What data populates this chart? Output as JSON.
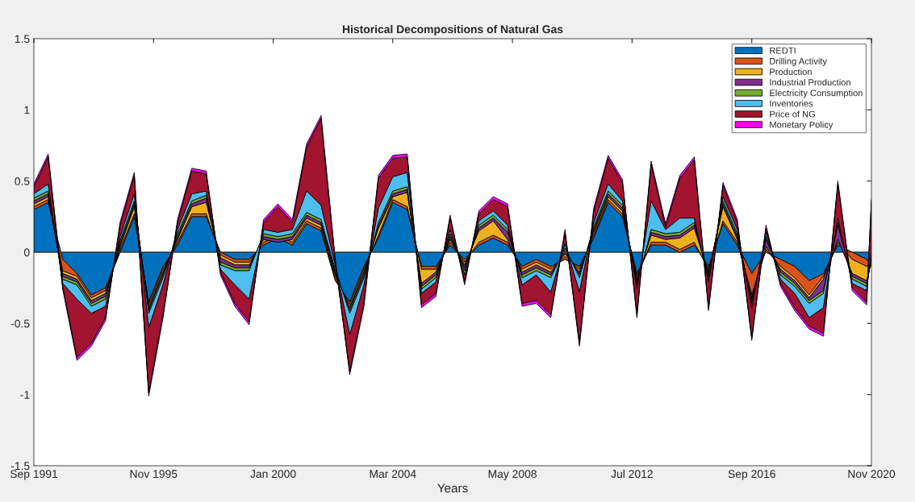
{
  "chart_data": {
    "type": "area",
    "stacked": true,
    "title": "Historical Decompositions of Natural Gas",
    "xlabel": "Years",
    "x": [
      "1991-09",
      "1992-03",
      "1992-09",
      "1993-03",
      "1993-09",
      "1994-03",
      "1994-09",
      "1995-03",
      "1995-09",
      "1996-03",
      "1996-09",
      "1997-03",
      "1997-09",
      "1998-03",
      "1998-09",
      "1999-03",
      "1999-09",
      "2000-03",
      "2000-09",
      "2001-03",
      "2001-09",
      "2002-03",
      "2002-09",
      "2003-03",
      "2003-09",
      "2004-03",
      "2004-09",
      "2005-03",
      "2005-09",
      "2006-03",
      "2006-09",
      "2007-03",
      "2007-09",
      "2008-03",
      "2008-09",
      "2009-03",
      "2009-09",
      "2010-03",
      "2010-09",
      "2011-03",
      "2011-09",
      "2012-03",
      "2012-09",
      "2013-03",
      "2013-09",
      "2014-03",
      "2014-09",
      "2015-03",
      "2015-09",
      "2016-03",
      "2016-09",
      "2017-03",
      "2017-09",
      "2018-03",
      "2018-09",
      "2019-03",
      "2019-09",
      "2020-03",
      "2020-09",
      "2020-11"
    ],
    "series": [
      {
        "name": "REDTI",
        "color": "#0072bd",
        "values": [
          0.3,
          0.35,
          -0.05,
          -0.15,
          -0.3,
          -0.25,
          0,
          0.25,
          -0.35,
          -0.1,
          0.05,
          0.25,
          0.25,
          0,
          -0.05,
          -0.05,
          0.05,
          0.1,
          0.05,
          0.2,
          0.15,
          -0.2,
          -0.35,
          -0.1,
          0.1,
          0.35,
          0.3,
          -0.1,
          -0.1,
          0.05,
          -0.05,
          0.05,
          0.1,
          0.05,
          -0.1,
          -0.05,
          -0.1,
          -0.05,
          -0.1,
          0.1,
          0.35,
          0.25,
          -0.15,
          0.05,
          0.05,
          0,
          0.05,
          -0.1,
          0.2,
          0.05,
          -0.15,
          0,
          -0.05,
          -0.1,
          -0.2,
          -0.15,
          0.05,
          0,
          -0.05,
          -0.1
        ]
      },
      {
        "name": "Drilling Activity",
        "color": "#d95319",
        "values": [
          0.02,
          0.02,
          -0.08,
          -0.02,
          -0.02,
          -0.02,
          0.02,
          0.02,
          -0.02,
          -0.02,
          0.02,
          0.02,
          0.02,
          -0.02,
          -0.02,
          -0.02,
          0.02,
          0.02,
          0.02,
          0.02,
          0.02,
          0.02,
          -0.02,
          -0.02,
          0.02,
          0.02,
          0.02,
          -0.02,
          -0.02,
          0.02,
          -0.02,
          0.02,
          0.02,
          0.02,
          -0.02,
          -0.02,
          -0.02,
          0.02,
          -0.02,
          0.02,
          0.02,
          0.02,
          -0.02,
          0.02,
          0.02,
          0.02,
          0.02,
          -0.02,
          0.02,
          0.02,
          -0.15,
          0.02,
          -0.05,
          -0.08,
          -0.1,
          -0.02,
          0.02,
          -0.05,
          -0.05,
          0.02
        ]
      },
      {
        "name": "Production",
        "color": "#edb120",
        "values": [
          0.02,
          0.02,
          -0.02,
          -0.02,
          -0.02,
          -0.02,
          0.02,
          0.05,
          -0.02,
          -0.02,
          0.02,
          0.05,
          0.08,
          -0.02,
          -0.02,
          -0.02,
          0.02,
          -0.05,
          0.02,
          0.02,
          0.02,
          0.02,
          -0.02,
          -0.02,
          0.05,
          0.02,
          0.1,
          -0.1,
          -0.02,
          0.02,
          -0.02,
          0.08,
          0.1,
          0.02,
          -0.02,
          -0.02,
          -0.02,
          0.02,
          -0.02,
          0.02,
          0.02,
          0.02,
          -0.02,
          0.05,
          0.02,
          0.08,
          0.1,
          -0.02,
          0.1,
          0.02,
          -0.02,
          0.02,
          -0.02,
          -0.02,
          -0.02,
          -0.02,
          0.02,
          -0.1,
          -0.1,
          0.02
        ]
      },
      {
        "name": "Industrial Production",
        "color": "#7e2f8e",
        "values": [
          0.02,
          0.02,
          -0.02,
          -0.02,
          -0.02,
          -0.02,
          0.02,
          0.02,
          -0.02,
          -0.02,
          0.02,
          0.02,
          0.03,
          -0.03,
          -0.02,
          -0.02,
          0.02,
          0.02,
          0.02,
          0.02,
          0.02,
          0.02,
          -0.02,
          -0.02,
          0.02,
          0.02,
          0.02,
          -0.02,
          -0.02,
          0.02,
          -0.02,
          0.02,
          0.02,
          0.05,
          -0.02,
          -0.02,
          -0.02,
          0.02,
          -0.02,
          0.02,
          0.02,
          0.02,
          -0.02,
          0.02,
          0.02,
          0.02,
          0.02,
          -0.02,
          0.02,
          0.02,
          -0.02,
          0.05,
          -0.02,
          -0.02,
          -0.02,
          -0.08,
          0.1,
          -0.02,
          -0.02,
          0.02
        ]
      },
      {
        "name": "Electricity Consumption",
        "color": "#77ac30",
        "values": [
          0.02,
          0.02,
          -0.02,
          -0.02,
          -0.02,
          -0.02,
          0.02,
          0.02,
          -0.02,
          -0.02,
          0.02,
          0.02,
          0.02,
          -0.02,
          -0.02,
          -0.02,
          0.02,
          0.02,
          0.02,
          0.02,
          0.02,
          0.02,
          -0.02,
          -0.02,
          0.02,
          0.02,
          0.02,
          -0.02,
          -0.02,
          0.02,
          -0.02,
          0.02,
          0.02,
          0.02,
          -0.02,
          -0.02,
          -0.02,
          0.02,
          -0.02,
          0.02,
          0.02,
          0.02,
          -0.02,
          0.02,
          0.02,
          0.02,
          0.02,
          -0.02,
          0.02,
          0.02,
          -0.02,
          0.02,
          -0.02,
          -0.02,
          -0.02,
          -0.02,
          0.02,
          -0.02,
          -0.02,
          0.02
        ]
      },
      {
        "name": "Inventories",
        "color": "#4dbeee",
        "values": [
          0.03,
          0.05,
          -0.03,
          -0.1,
          -0.05,
          -0.05,
          0.03,
          0.05,
          -0.1,
          -0.05,
          0.03,
          0.05,
          0.03,
          -0.03,
          -0.1,
          -0.2,
          0.03,
          0.03,
          0.03,
          0.15,
          0.1,
          0.03,
          -0.15,
          -0.05,
          0.1,
          0.1,
          0.1,
          -0.03,
          -0.03,
          0.03,
          -0.03,
          0.03,
          0.03,
          0.03,
          -0.05,
          -0.03,
          -0.1,
          0.03,
          -0.1,
          0.03,
          0.05,
          0.03,
          -0.03,
          0.2,
          0.03,
          0.1,
          0.03,
          -0.03,
          0.03,
          0.03,
          -0.03,
          0.03,
          -0.03,
          -0.05,
          -0.1,
          -0.1,
          0.03,
          -0.03,
          -0.03,
          0.03
        ]
      },
      {
        "name": "Price of NG",
        "color": "#a2142f",
        "values": [
          0.05,
          0.19,
          -0.02,
          -0.41,
          -0.21,
          -0.08,
          0.08,
          0.13,
          -0.46,
          -0.21,
          0.05,
          0.16,
          0.12,
          -0.02,
          -0.13,
          -0.16,
          0.05,
          0.18,
          0.05,
          0.31,
          0.61,
          0.02,
          -0.26,
          -0.13,
          0.21,
          0.13,
          0.11,
          -0.08,
          -0.08,
          0.08,
          -0.05,
          0.05,
          0.08,
          0.13,
          -0.13,
          -0.18,
          -0.16,
          0.08,
          -0.36,
          0.08,
          0.18,
          0.13,
          -0.18,
          0.26,
          0.02,
          0.28,
          0.41,
          -0.18,
          0.08,
          0.05,
          -0.21,
          0.03,
          -0.03,
          -0.1,
          -0.06,
          -0.18,
          0.24,
          -0.03,
          -0.08,
          0.34
        ]
      },
      {
        "name": "Monetary Policy",
        "color": "#ff00ff",
        "values": [
          0.02,
          0.02,
          -0.02,
          -0.02,
          -0.02,
          -0.02,
          0.02,
          0.02,
          -0.02,
          -0.02,
          0.02,
          0.02,
          0.02,
          -0.02,
          -0.02,
          -0.02,
          0.02,
          0.02,
          0.02,
          0.02,
          0.02,
          0.02,
          -0.02,
          -0.02,
          0.02,
          0.02,
          0.02,
          -0.02,
          -0.02,
          0.02,
          -0.02,
          0.02,
          0.02,
          0.02,
          -0.02,
          -0.02,
          -0.02,
          0.02,
          -0.02,
          0.02,
          0.02,
          0.02,
          -0.02,
          0.02,
          0.02,
          0.02,
          0.02,
          -0.02,
          0.02,
          0.02,
          -0.02,
          0.02,
          -0.02,
          -0.02,
          -0.02,
          -0.02,
          0.02,
          -0.02,
          -0.02,
          0.02
        ]
      }
    ],
    "xlim": [
      "1991-09",
      "2020-11"
    ],
    "xticks": [
      {
        "value": "1991-09",
        "label": "Sep 1991"
      },
      {
        "value": "1995-11",
        "label": "Nov 1995"
      },
      {
        "value": "2000-01",
        "label": "Jan 2000"
      },
      {
        "value": "2004-03",
        "label": "Mar 2004"
      },
      {
        "value": "2008-05",
        "label": "May 2008"
      },
      {
        "value": "2012-07",
        "label": "Jul 2012"
      },
      {
        "value": "2016-09",
        "label": "Sep 2016"
      },
      {
        "value": "2020-11",
        "label": "Nov 2020"
      }
    ],
    "ylim": [
      -1.5,
      1.5
    ],
    "yticks": [
      -1.5,
      -1,
      -0.5,
      0,
      0.5,
      1,
      1.5
    ],
    "ref_lines": [
      {
        "axis": "y",
        "value": 0
      }
    ],
    "legend": "top right"
  }
}
